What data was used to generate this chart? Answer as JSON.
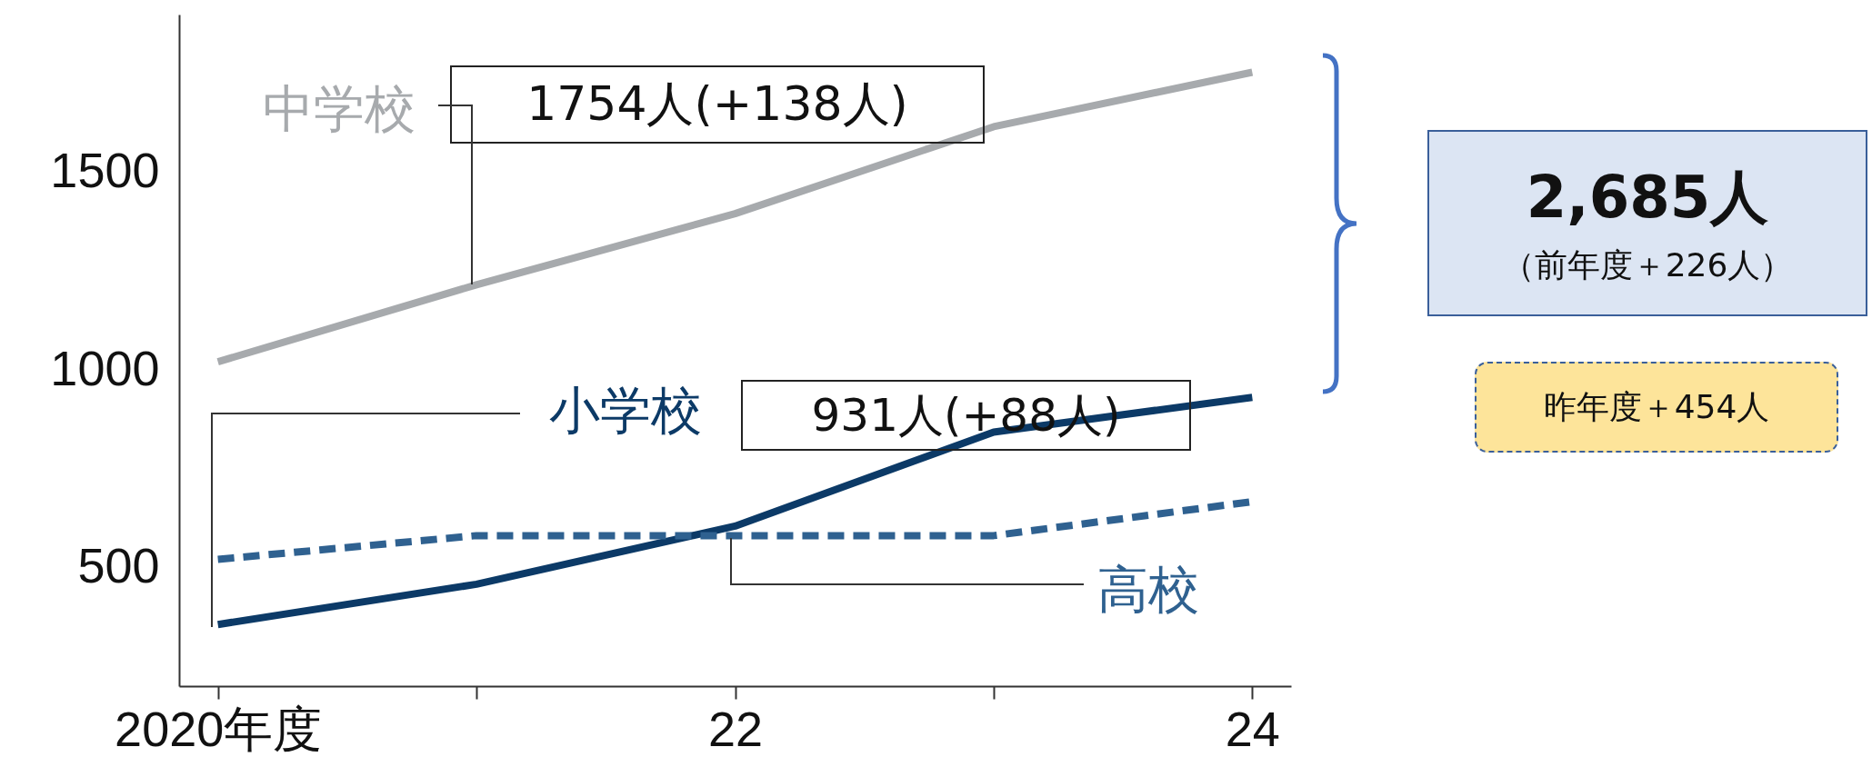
{
  "chart_data": {
    "type": "line",
    "x": [
      2020,
      2021,
      2022,
      2023,
      2024
    ],
    "series": [
      {
        "name": "中学校",
        "color": "#a7aaad",
        "values": [
          1021,
          1216,
          1396,
          1616,
          1754
        ],
        "line_style": "solid"
      },
      {
        "name": "小学校",
        "color": "#0c3a67",
        "values": [
          356,
          458,
          605,
          843,
          931
        ],
        "line_style": "solid"
      },
      {
        "name": "高校",
        "color": "#2f6190",
        "values": [
          521,
          581,
          581,
          581,
          667
        ],
        "line_style": "dashed"
      }
    ],
    "xlim": [
      2019.85,
      2024.15
    ],
    "xticks": [
      {
        "value": 2020,
        "label": "2020年度"
      },
      {
        "value": 2021,
        "label": null
      },
      {
        "value": 2022,
        "label": "22"
      },
      {
        "value": 2023,
        "label": null
      },
      {
        "value": 2024,
        "label": "24"
      }
    ],
    "ylim": [
      200,
      1900
    ],
    "yticks": [
      500,
      1000,
      1500
    ],
    "grid": false,
    "legend": false,
    "marker": "none",
    "annotations": [
      "1754人(+138人)",
      "931人(+88人)",
      "2,685人",
      "（前年度＋226人）",
      "昨年度＋454人"
    ]
  }
}
